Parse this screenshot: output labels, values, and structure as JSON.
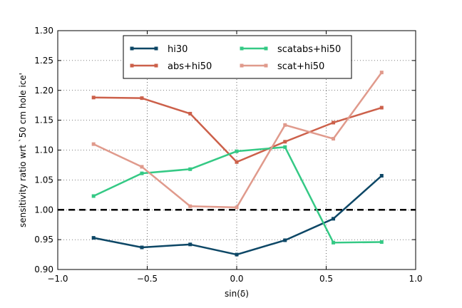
{
  "chart_data": {
    "type": "line",
    "xlabel": "sin(δ)",
    "ylabel": "sensitivity ratio wrt `50 cm hole ice'",
    "xlim": [
      -1.0,
      1.0
    ],
    "ylim": [
      0.9,
      1.3
    ],
    "xticks": [
      -1.0,
      -0.5,
      0.0,
      0.5,
      1.0
    ],
    "xtick_labels": [
      "−1.0",
      "−0.5",
      "0.0",
      "0.5",
      "1.0"
    ],
    "yticks": [
      0.9,
      0.95,
      1.0,
      1.05,
      1.1,
      1.15,
      1.2,
      1.25,
      1.3
    ],
    "ytick_labels": [
      "0.90",
      "0.95",
      "1.00",
      "1.05",
      "1.10",
      "1.15",
      "1.20",
      "1.25",
      "1.30"
    ],
    "grid": true,
    "legend_position": "top-center",
    "reference_line": {
      "y": 1.0,
      "style": "dashed",
      "color": "#000000"
    },
    "x": [
      -0.8,
      -0.53,
      -0.26,
      0.0,
      0.27,
      0.54,
      0.81
    ],
    "series": [
      {
        "name": "hi30",
        "color": "#0d4766",
        "values": [
          0.953,
          0.937,
          0.942,
          0.925,
          0.949,
          0.985,
          1.057
        ]
      },
      {
        "name": "abs+hi50",
        "color": "#cc604a",
        "values": [
          1.188,
          1.187,
          1.161,
          1.08,
          1.114,
          1.146,
          1.171
        ]
      },
      {
        "name": "scatabs+hi50",
        "color": "#35c985",
        "values": [
          1.023,
          1.061,
          1.068,
          1.098,
          1.105,
          0.945,
          0.946
        ]
      },
      {
        "name": "scat+hi50",
        "color": "#e09a8c",
        "values": [
          1.11,
          1.072,
          1.006,
          1.004,
          1.142,
          1.119,
          1.23
        ]
      }
    ]
  }
}
